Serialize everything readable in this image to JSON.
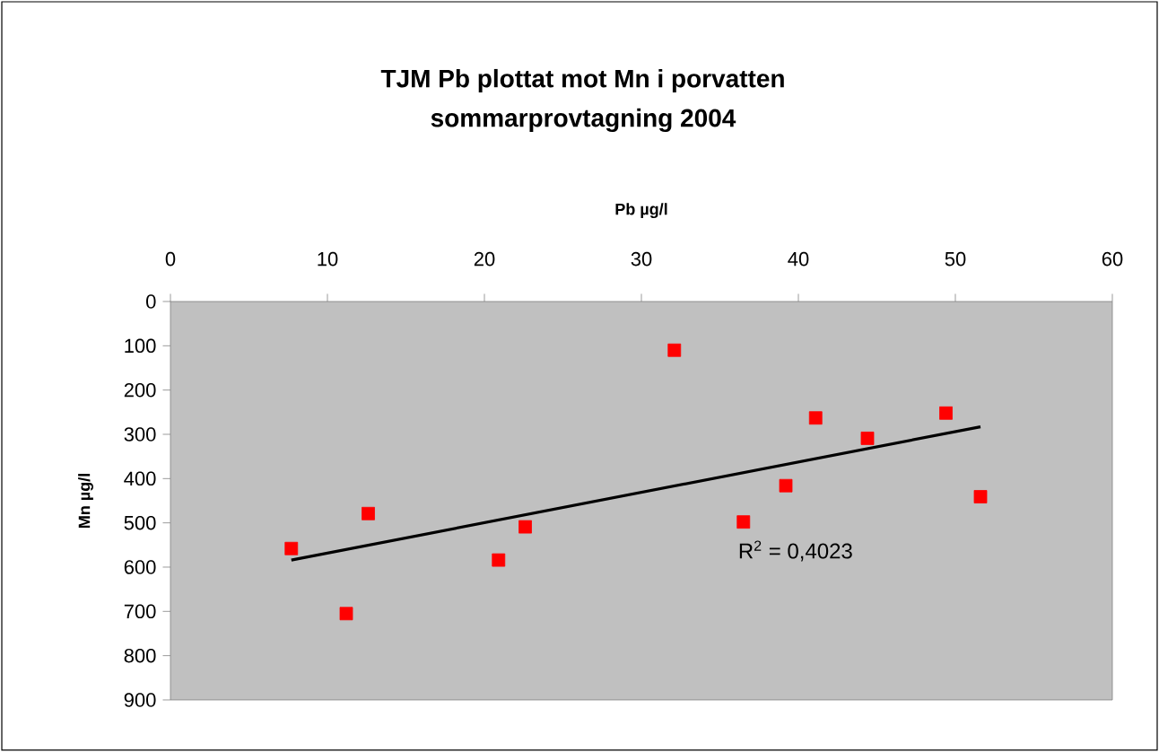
{
  "chart_data": {
    "type": "scatter",
    "title": "TJM Pb plottat mot Mn i porvatten",
    "subtitle": "sommarprovtagning 2004",
    "xlabel": "Pb µg/l",
    "ylabel": "Mn µg/l",
    "annotations": [
      "R$^{2}$ = 0,4023"
    ],
    "x": [
      7.7,
      11.2,
      12.6,
      20.9,
      22.6,
      32.1,
      36.5,
      39.2,
      41.1,
      44.4,
      49.4,
      51.6
    ],
    "series": [
      {
        "color": "#ff0000",
        "marker": "square",
        "values": [
          558,
          705,
          479,
          584,
          509,
          110,
          498,
          416,
          263,
          309,
          252,
          441
        ]
      },
      {
        "type": "line",
        "color": "#000000",
        "x": [
          7.7,
          51.6
        ],
        "values": [
          584,
          283
        ]
      }
    ],
    "xlim": [
      0,
      60
    ],
    "ylim": [
      900,
      0
    ],
    "xticks": [
      0,
      10,
      20,
      30,
      40,
      50,
      60
    ],
    "yticks": [
      0,
      100,
      200,
      300,
      400,
      500,
      600,
      700,
      800,
      900
    ],
    "grid": false
  }
}
